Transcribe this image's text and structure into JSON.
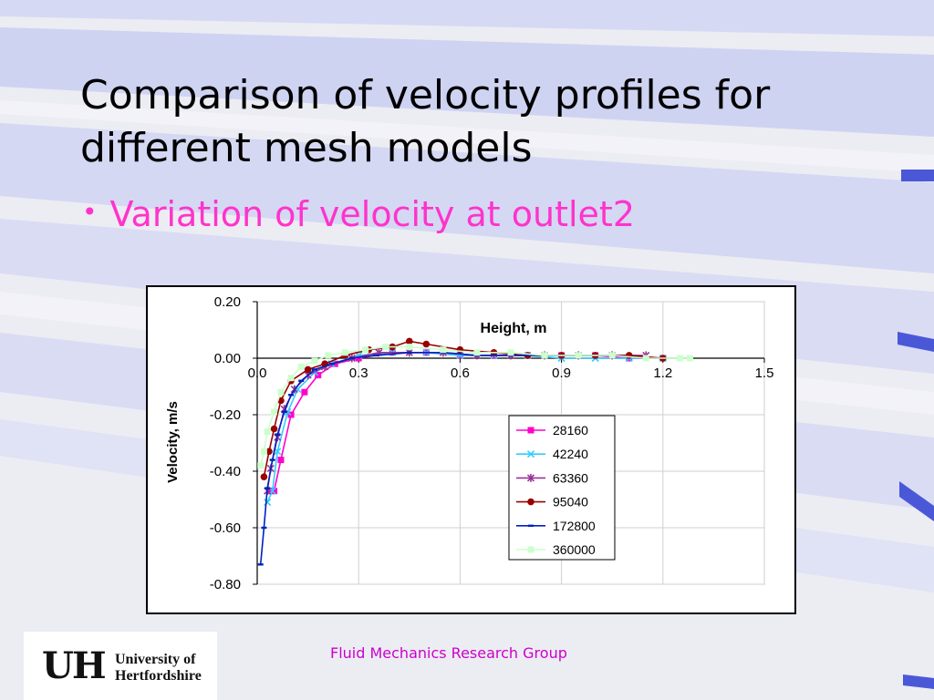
{
  "slide": {
    "title_line1": "Comparison of velocity profiles for",
    "title_line2": "different mesh models",
    "bullet_symbol": "•",
    "bullet_text": "Variation of velocity at outlet2",
    "footer": "Fluid Mechanics Research Group",
    "logo": {
      "mark": "UH",
      "line1": "University of",
      "line2": "Hertfordshire"
    }
  },
  "colors": {
    "title": "#000000",
    "bullet": "#ff33cc",
    "footer": "#cc00cc",
    "stripe_band": "#d6d9f4",
    "accent_dash": "#4a58d8"
  },
  "chart_data": {
    "type": "line",
    "title": "",
    "xlabel": "Height, m",
    "ylabel": "Velocity, m/s",
    "xlim": [
      0,
      1.5
    ],
    "ylim": [
      -0.8,
      0.2
    ],
    "xticks": [
      "0.0",
      "0.3",
      "0.6",
      "0.9",
      "1.2",
      "1.5"
    ],
    "yticks": [
      "0.20",
      "0.00",
      "-0.20",
      "-0.40",
      "-0.60",
      "-0.80"
    ],
    "grid": true,
    "legend_position": "center-right",
    "series": [
      {
        "name": "28160",
        "color": "#ff00cc",
        "marker": "square",
        "x": [
          0.04,
          0.05,
          0.07,
          0.1,
          0.14,
          0.18,
          0.23,
          0.3,
          0.4,
          0.5,
          0.6,
          0.7,
          0.8,
          0.9,
          1.0,
          1.1,
          1.2
        ],
        "y": [
          -0.47,
          -0.47,
          -0.36,
          -0.2,
          -0.12,
          -0.06,
          -0.02,
          0.0,
          0.02,
          0.02,
          0.01,
          0.01,
          0.01,
          0.01,
          0.01,
          0.0,
          0.0
        ]
      },
      {
        "name": "42240",
        "color": "#33ccff",
        "marker": "x",
        "x": [
          0.03,
          0.045,
          0.06,
          0.09,
          0.12,
          0.17,
          0.22,
          0.3,
          0.4,
          0.5,
          0.6,
          0.7,
          0.8,
          0.9,
          1.0,
          1.1,
          1.2
        ],
        "y": [
          -0.51,
          -0.47,
          -0.33,
          -0.19,
          -0.11,
          -0.05,
          -0.02,
          0.01,
          0.02,
          0.02,
          0.01,
          0.01,
          0.01,
          0.0,
          0.0,
          0.0,
          0.0
        ]
      },
      {
        "name": "63360",
        "color": "#993399",
        "marker": "star",
        "x": [
          0.03,
          0.04,
          0.06,
          0.08,
          0.11,
          0.15,
          0.2,
          0.28,
          0.36,
          0.45,
          0.55,
          0.65,
          0.75,
          0.85,
          0.95,
          1.05,
          1.15
        ],
        "y": [
          -0.47,
          -0.39,
          -0.28,
          -0.18,
          -0.11,
          -0.06,
          -0.03,
          0.0,
          0.02,
          0.02,
          0.02,
          0.01,
          0.01,
          0.01,
          0.01,
          0.01,
          0.01
        ]
      },
      {
        "name": "95040",
        "color": "#990000",
        "marker": "circle",
        "x": [
          0.02,
          0.035,
          0.05,
          0.07,
          0.1,
          0.15,
          0.2,
          0.26,
          0.33,
          0.4,
          0.45,
          0.5,
          0.6,
          0.7,
          0.8,
          0.9,
          1.0,
          1.1,
          1.2
        ],
        "y": [
          -0.42,
          -0.33,
          -0.25,
          -0.15,
          -0.08,
          -0.04,
          -0.02,
          0.01,
          0.03,
          0.04,
          0.06,
          0.05,
          0.03,
          0.02,
          0.01,
          0.01,
          0.01,
          0.01,
          0.0
        ]
      },
      {
        "name": "172800",
        "color": "#0022bb",
        "marker": "dash",
        "x": [
          0.01,
          0.02,
          0.03,
          0.045,
          0.06,
          0.08,
          0.1,
          0.13,
          0.17,
          0.22,
          0.28,
          0.35,
          0.45,
          0.55,
          0.65,
          0.75,
          0.85,
          0.95,
          1.05,
          1.15
        ],
        "y": [
          -0.73,
          -0.6,
          -0.46,
          -0.36,
          -0.27,
          -0.19,
          -0.13,
          -0.08,
          -0.04,
          -0.02,
          0.0,
          0.01,
          0.02,
          0.02,
          0.01,
          0.01,
          0.01,
          0.01,
          0.01,
          0.0
        ]
      },
      {
        "name": "360000",
        "color": "#ccffcc",
        "marker": "square",
        "x": [
          0.01,
          0.02,
          0.03,
          0.05,
          0.07,
          0.1,
          0.13,
          0.17,
          0.21,
          0.26,
          0.32,
          0.38,
          0.45,
          0.55,
          0.65,
          0.75,
          0.85,
          0.95,
          1.05,
          1.15,
          1.25,
          1.28
        ],
        "y": [
          -0.38,
          -0.33,
          -0.26,
          -0.19,
          -0.12,
          -0.07,
          -0.03,
          -0.01,
          0.01,
          0.02,
          0.03,
          0.04,
          0.04,
          0.03,
          0.02,
          0.02,
          0.01,
          0.01,
          0.01,
          0.0,
          0.0,
          0.0
        ]
      }
    ]
  }
}
